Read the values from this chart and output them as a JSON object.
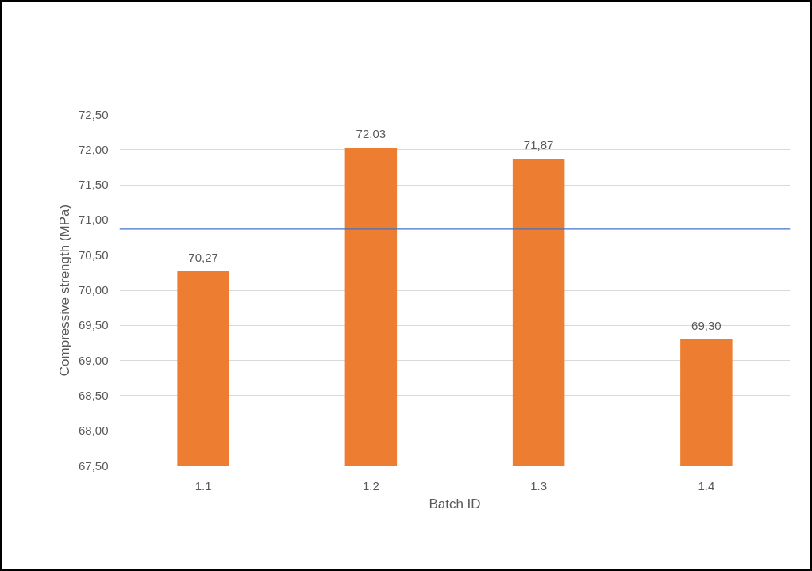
{
  "chart_data": {
    "type": "bar",
    "xlabel": "Batch ID",
    "ylabel": "Compressive strength (MPa)",
    "categories": [
      "1.1",
      "1.2",
      "1.3",
      "1.4"
    ],
    "values": [
      70.27,
      72.03,
      71.87,
      69.3
    ],
    "value_labels": [
      "70,27",
      "72,03",
      "71,87",
      "69,30"
    ],
    "color": "#ed7d31",
    "ylim": [
      67.5,
      72.5
    ],
    "yticks": [
      {
        "value": 67.5,
        "label": "67,50"
      },
      {
        "value": 68.0,
        "label": "68,00"
      },
      {
        "value": 68.5,
        "label": "68,50"
      },
      {
        "value": 69.0,
        "label": "69,00"
      },
      {
        "value": 69.5,
        "label": "69,50"
      },
      {
        "value": 70.0,
        "label": "70,00"
      },
      {
        "value": 70.5,
        "label": "70,50"
      },
      {
        "value": 71.0,
        "label": "71,00"
      },
      {
        "value": 71.5,
        "label": "71,50"
      },
      {
        "value": 72.0,
        "label": "72,00"
      },
      {
        "value": 72.5,
        "label": "72,50"
      }
    ],
    "ref_lines": [
      {
        "axis": "y",
        "value": 70.87,
        "color": "#4472c4"
      }
    ],
    "grid": "y"
  }
}
